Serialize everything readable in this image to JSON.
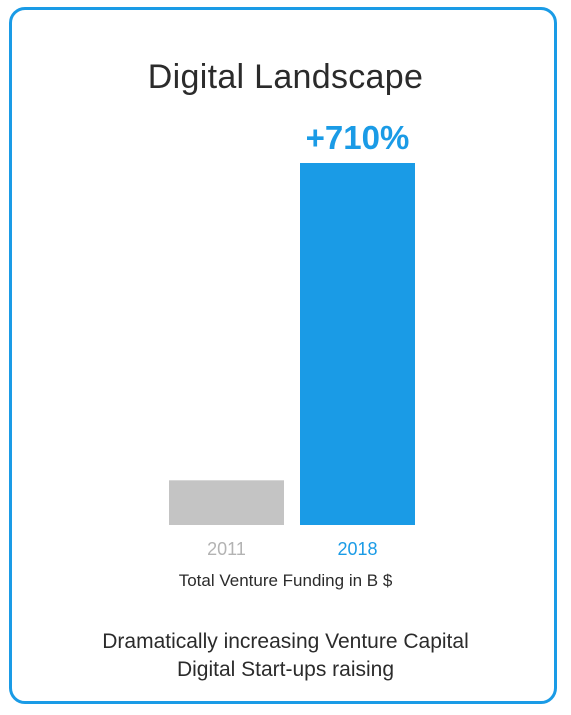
{
  "card": {
    "title": "Digital Landscape",
    "footer_lines": [
      "Dramatically increasing Venture Capital",
      "Digital Start-ups raising"
    ]
  },
  "colors": {
    "border": "#1a9be6",
    "highlight": "#1a9be6",
    "muted_bar": "#c4c4c4",
    "muted_label": "#b3b3b3",
    "text": "#2b2b2b"
  },
  "chart_data": {
    "type": "bar",
    "title": "Digital Landscape",
    "xlabel": "Total Venture Funding in B $",
    "ylabel": "",
    "categories": [
      "2011",
      "2018"
    ],
    "values": [
      1,
      8.1
    ],
    "annotation": "+710%",
    "annotated_category": "2018",
    "ylim": [
      0,
      8.1
    ],
    "grid": false
  }
}
